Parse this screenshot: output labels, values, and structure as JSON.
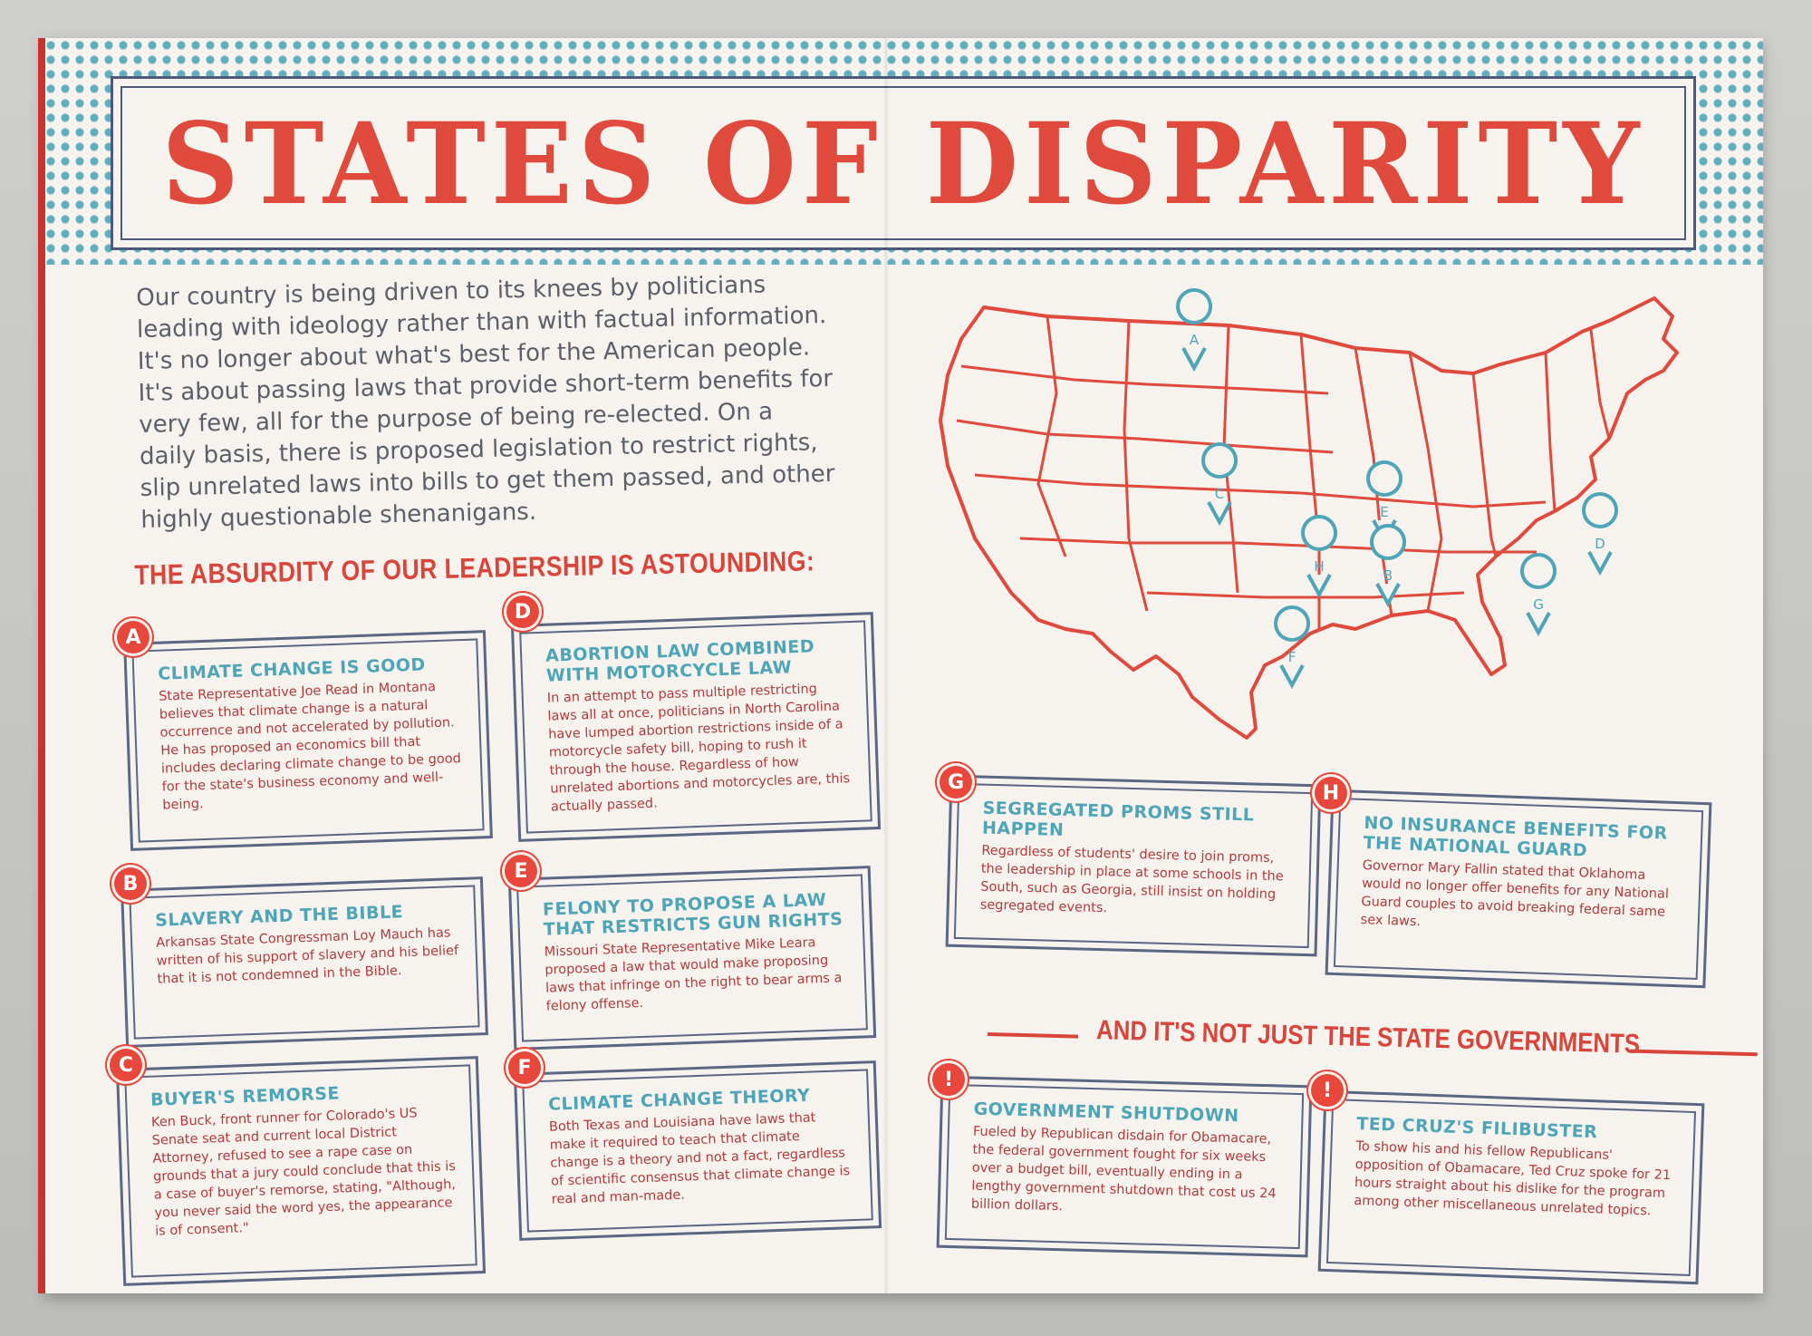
{
  "title": "STATES OF DISPARITY",
  "intro": "Our country is being driven to its knees by politicians leading with ideology rather than with factual information. It's no longer about what's best for the American people. It's about passing laws that provide short-term benefits for very few, all for the purpose of being re-elected. On a daily basis, there is proposed legislation to restrict rights, slip unrelated laws into bills to get them passed, and other highly questionable shenanigans.",
  "section_heading": "THE ABSURDITY OF OUR LEADERSHIP IS ASTOUNDING:",
  "divider_heading": "AND IT'S NOT JUST THE STATE GOVERNMENTS",
  "colors": {
    "red": "#e04a3c",
    "teal": "#4ea5b8",
    "navy": "#4b5a7a"
  },
  "cards": {
    "a": {
      "badge": "A",
      "title": "CLIMATE CHANGE IS GOOD",
      "body": "State Representative Joe Read in Montana believes that climate change is a natural occurrence and not accelerated by pollution. He has proposed an economics bill that includes declaring climate change to be good for the state's business economy and well-being."
    },
    "b": {
      "badge": "B",
      "title": "SLAVERY AND THE BIBLE",
      "body": "Arkansas State Congressman Loy Mauch has written of his support of slavery and his belief that it is not condemned in the Bible."
    },
    "c": {
      "badge": "C",
      "title": "BUYER'S REMORSE",
      "body": "Ken Buck, front runner for Colorado's US Senate seat and current local District Attorney, refused to see a rape case on grounds that a jury could conclude that this is a case of buyer's remorse, stating, \"Although, you never said the word yes, the appearance is of consent.\""
    },
    "d": {
      "badge": "D",
      "title": "ABORTION LAW COMBINED WITH MOTORCYCLE LAW",
      "body": "In an attempt to pass multiple restricting laws all at once, politicians in North Carolina have lumped abortion restrictions inside of a motorcycle safety bill, hoping to rush it through the house. Regardless of how unrelated abortions and motorcycles are, this actually passed."
    },
    "e": {
      "badge": "E",
      "title": "FELONY TO PROPOSE A LAW THAT RESTRICTS GUN RIGHTS",
      "body": "Missouri State Representative Mike Leara proposed a law that would make proposing laws that infringe on the right to bear arms a felony offense."
    },
    "f": {
      "badge": "F",
      "title": "CLIMATE CHANGE THEORY",
      "body": "Both Texas and Louisiana have laws that make it required to teach that climate change is a theory and not a fact, regardless of scientific consensus that climate change is real and man-made."
    },
    "g": {
      "badge": "G",
      "title": "SEGREGATED PROMS STILL HAPPEN",
      "body": "Regardless of students' desire to join proms, the leadership in place at some schools in the South, such as Georgia, still insist on holding segregated events."
    },
    "h": {
      "badge": "H",
      "title": "NO INSURANCE BENEFITS FOR THE NATIONAL GUARD",
      "body": "Governor Mary Fallin stated that Oklahoma would no longer offer benefits for any National Guard couples to avoid breaking federal same sex laws."
    },
    "i": {
      "badge": "!",
      "title": "GOVERNMENT SHUTDOWN",
      "body": "Fueled by Republican disdain for Obamacare, the federal government fought for six weeks over a budget bill, eventually ending in a lengthy government shutdown that cost us 24 billion dollars."
    },
    "j": {
      "badge": "!",
      "title": "TED CRUZ'S FILIBUSTER",
      "body": "To show his and his fellow Republicans' opposition of Obamacare, Ted Cruz spoke for 21 hours straight about his dislike for the program among other miscellaneous unrelated topics."
    }
  },
  "map_pins": [
    "A",
    "B",
    "C",
    "D",
    "E",
    "F",
    "G",
    "H"
  ]
}
